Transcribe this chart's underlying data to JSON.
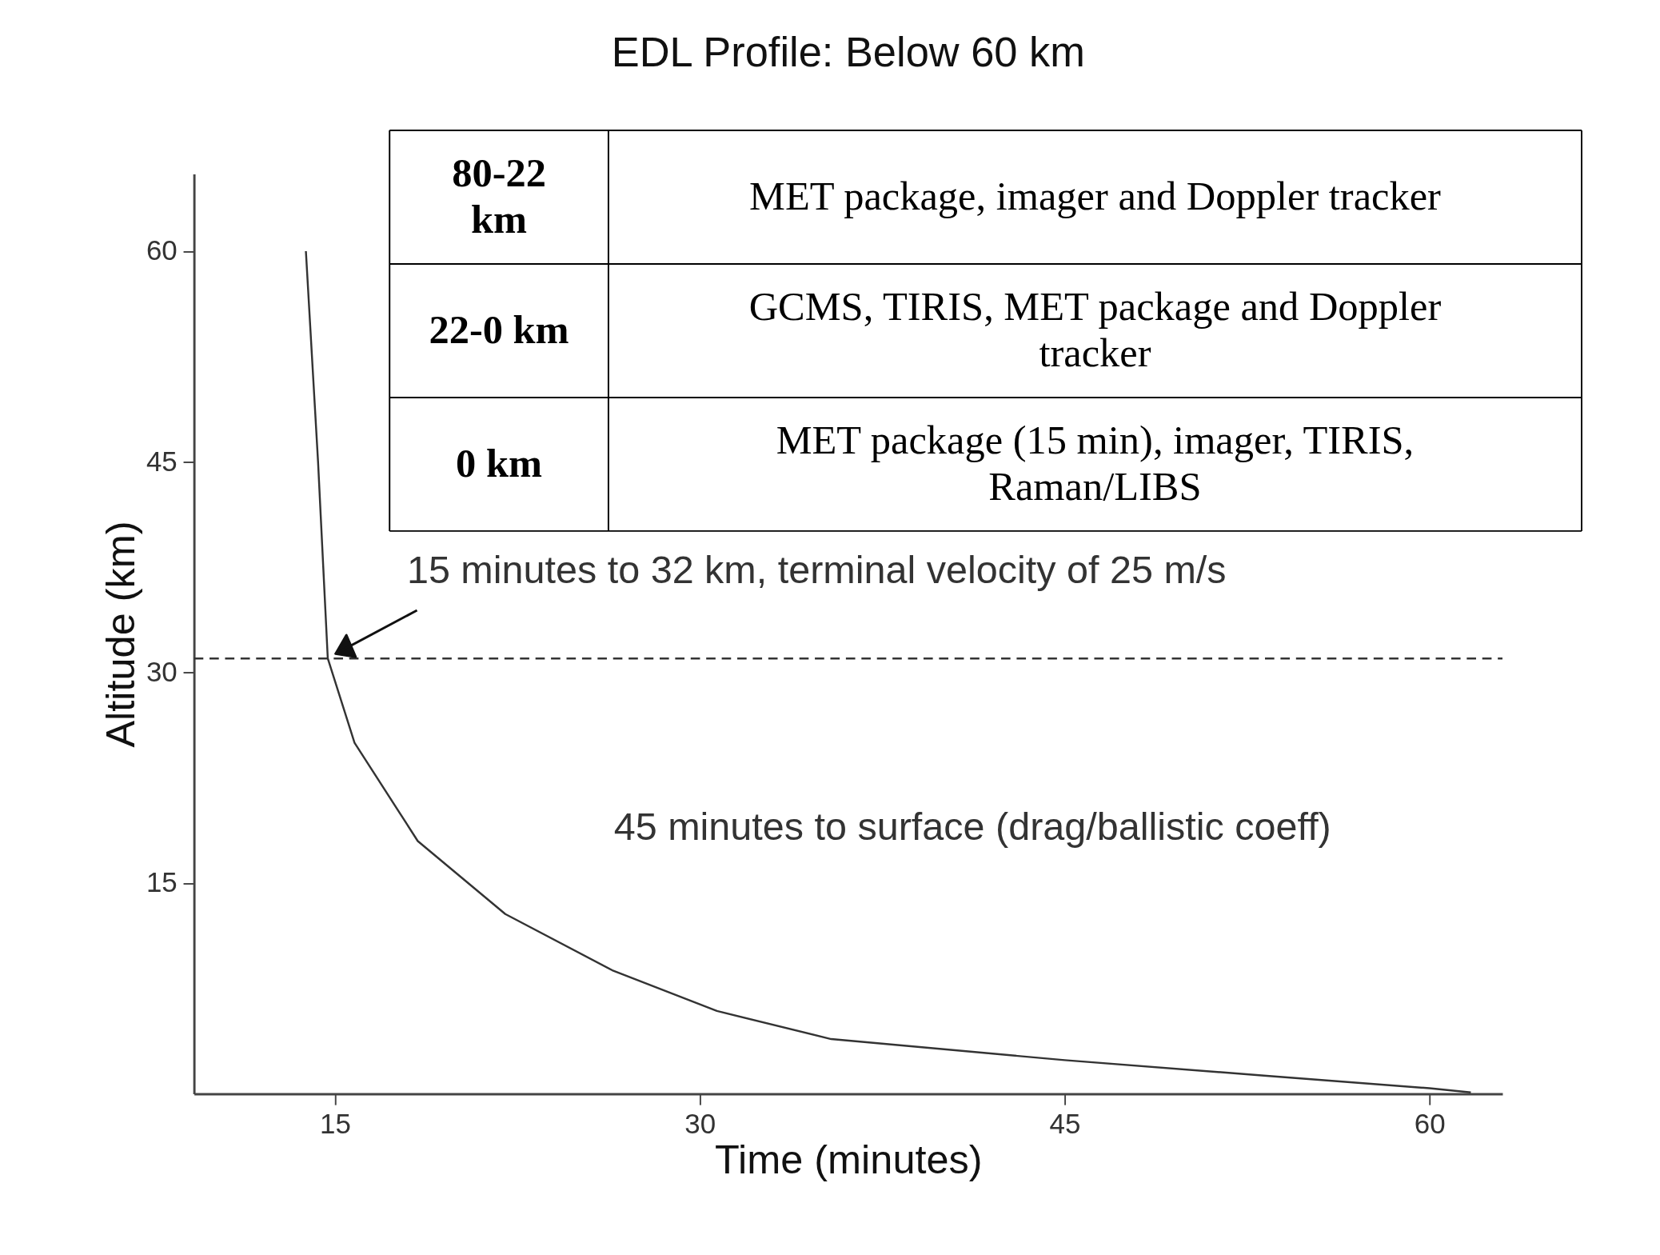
{
  "chart_data": {
    "type": "line",
    "title": "EDL Profile: Below 60 km",
    "xlabel": "Time (minutes)",
    "ylabel": "Altitude (km)",
    "x": [
      13.8,
      14.3,
      14.7,
      15.8,
      18.4,
      22,
      26.4,
      30.7,
      35.4,
      45,
      53.2,
      60,
      61.7
    ],
    "series": [
      {
        "color": "#333333",
        "values": [
          60,
          45,
          31,
          25,
          18,
          12.8,
          8.8,
          5.9,
          3.9,
          2.4,
          1.3,
          0.4,
          0.1
        ]
      }
    ],
    "xlim": [
      9.2,
      63
    ],
    "xticks": [
      15,
      30,
      45,
      60
    ],
    "ylim": [
      0,
      65.5
    ],
    "yticks": [
      15,
      30,
      45,
      60
    ],
    "grid": false,
    "marker": "none",
    "line_style": "solid",
    "ref_lines": [
      {
        "axis": "y",
        "value": 31,
        "line_style": "dashed",
        "color": "#333333"
      }
    ],
    "annotations": [
      {
        "text": "15 minutes to 32 km, terminal velocity of 25 m/s",
        "x": 14.7,
        "y": 31
      },
      "45 minutes to surface (drag/ballistic coeff)",
      "80-22 km",
      "MET package, imager and Doppler tracker",
      "22-0 km",
      "GCMS, TIRIS, MET package and Doppler tracker",
      "0 km",
      "MET package (15 min), imager, TIRIS, Raman/LIBS"
    ]
  }
}
